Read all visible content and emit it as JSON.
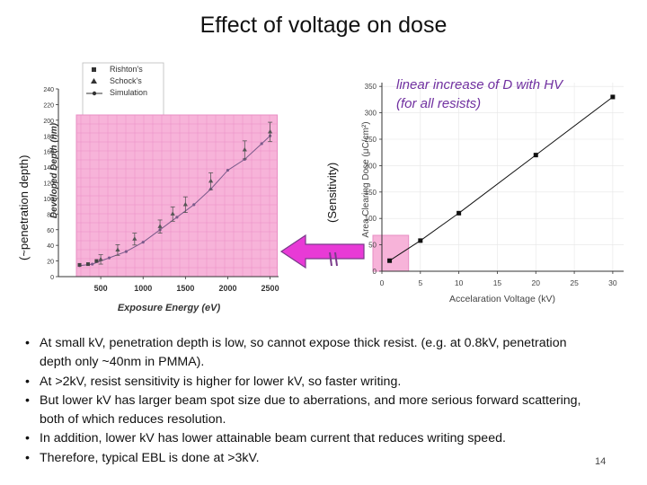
{
  "title": "Effect of voltage on dose",
  "left_vertical_label": "(~penetration depth)",
  "middle_vertical_label": "(Sensitivity)",
  "bullets": [
    "At small kV, penetration depth is low, so cannot expose thick resist. (e.g. at 0.8kV, penetration depth only ~40nm in PMMA).",
    "At >2kV, resist sensitivity is higher for lower kV, so faster writing.",
    "But lower kV has larger beam spot size due to aberrations, and more serious forward scattering, both of which reduces resolution.",
    "In addition, lower kV has lower attainable beam current that reduces writing speed.",
    "Therefore, typical EBL is done at >3kV."
  ],
  "page_number": "14",
  "colors": {
    "highlight_pink": "#f7b3d9",
    "arrow_magenta": "#e83ad6",
    "annotation_purple": "#7030a0"
  },
  "chart_data": [
    {
      "type": "scatter",
      "title": "",
      "xlabel": "Exposure Energy (eV)",
      "ylabel": "Developed Depth (nm)",
      "xlim": [
        0,
        2600
      ],
      "ylim": [
        0,
        240
      ],
      "xticks": [
        "500",
        "1000",
        "1500",
        "2000",
        "2500"
      ],
      "yticks": [
        "0",
        "20",
        "40",
        "60",
        "80",
        "100",
        "120",
        "140",
        "160",
        "180",
        "200",
        "220",
        "240"
      ],
      "legend": [
        "Rishton's",
        "Schock's",
        "Simulation"
      ],
      "legend_position": "top-left",
      "highlight_region": [
        0,
        2500
      ],
      "series": [
        {
          "name": "Rishton's",
          "x": [
            250,
            350,
            450
          ],
          "y": [
            15,
            16,
            20
          ]
        },
        {
          "name": "Schock's",
          "x": [
            500,
            700,
            900,
            1200,
            1350,
            1500,
            1800,
            2200,
            2500
          ],
          "y": [
            22,
            34,
            48,
            64,
            80,
            92,
            122,
            162,
            185
          ]
        },
        {
          "name": "Simulation",
          "x": [
            250,
            400,
            600,
            800,
            1000,
            1200,
            1400,
            1600,
            1800,
            2000,
            2200,
            2400,
            2500
          ],
          "y": [
            14,
            16,
            24,
            32,
            44,
            60,
            76,
            92,
            112,
            136,
            150,
            170,
            180
          ]
        }
      ]
    },
    {
      "type": "line",
      "title": "",
      "annotation": "linear increase of D with HV (for all resists)",
      "xlabel": "Accelaration Voltage (kV)",
      "ylabel": "Area Clearing Dose (μC/cm²)",
      "xlim": [
        0,
        30
      ],
      "ylim": [
        0,
        350
      ],
      "xticks": [
        "0",
        "5",
        "10",
        "15",
        "20",
        "25",
        "30"
      ],
      "yticks": [
        "0",
        "50",
        "100",
        "150",
        "200",
        "250",
        "300",
        "350"
      ],
      "highlight_region": [
        0,
        3
      ],
      "series": [
        {
          "name": "",
          "x": [
            1,
            5,
            10,
            20,
            30
          ],
          "y": [
            20,
            58,
            110,
            220,
            330
          ]
        }
      ]
    }
  ]
}
